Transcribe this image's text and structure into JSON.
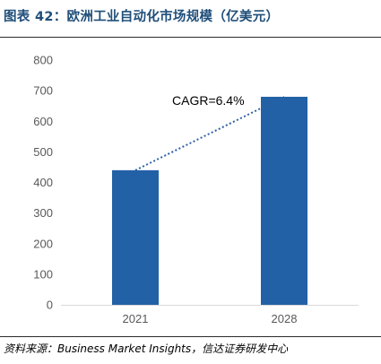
{
  "figure_title": "图表 42：欧洲工业自动化市场规模（亿美元）",
  "source_note": "资料来源：Business Market Insights，信达证券研发中心",
  "chart_data": {
    "type": "bar",
    "categories": [
      "2021",
      "2028"
    ],
    "values": [
      440,
      680
    ],
    "ylim": [
      0,
      800
    ],
    "yticks": [
      0,
      100,
      200,
      300,
      400,
      500,
      600,
      700,
      800
    ],
    "grid": false,
    "legend": "none",
    "bar_color": "#2361a6",
    "axis_color": "#d9d9d9",
    "trend": {
      "from": "2021",
      "to": "2028",
      "style": "dotted",
      "color": "#2e5fa3"
    },
    "annotation": "CAGR=6.4%"
  }
}
